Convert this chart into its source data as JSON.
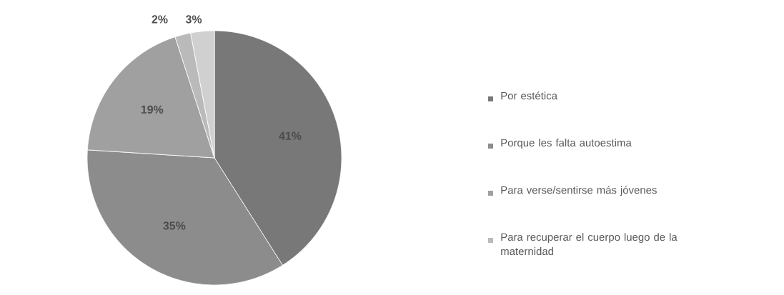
{
  "chart_data": {
    "type": "pie",
    "categories": [
      "Por estética",
      "Porque les falta autoestima",
      "Para verse/sentirse más jóvenes",
      "Para recuperar el cuerpo luego de la maternidad",
      null
    ],
    "values": [
      41,
      35,
      19,
      2,
      3
    ],
    "colors": [
      "#787878",
      "#8c8c8c",
      "#a0a0a0",
      "#bababa",
      "#d0d0d0"
    ],
    "value_labels": [
      "41%",
      "35%",
      "19%",
      "2%",
      "3%"
    ],
    "legend": "right"
  }
}
